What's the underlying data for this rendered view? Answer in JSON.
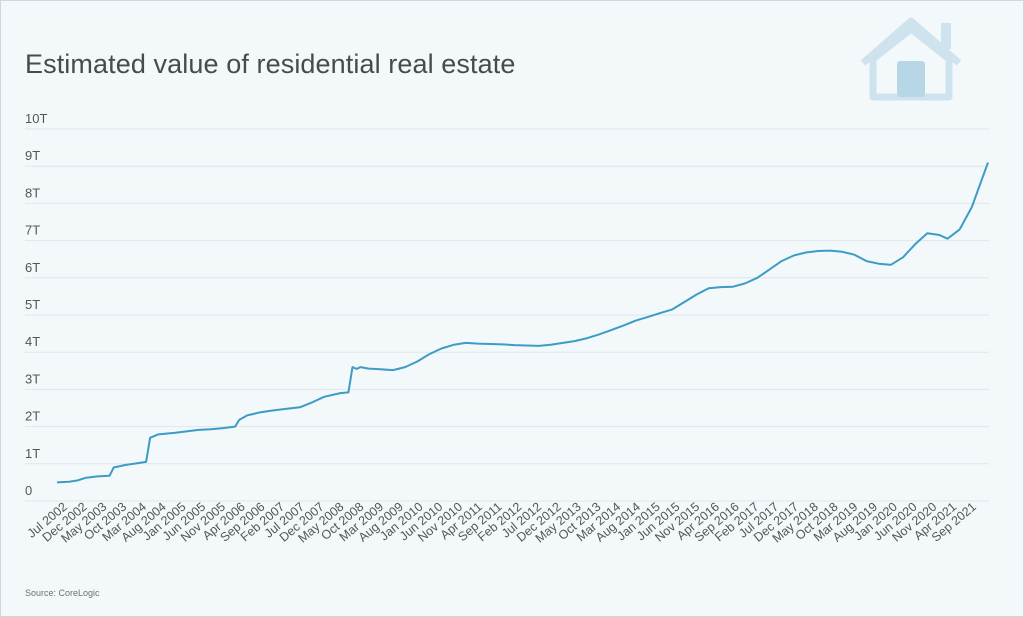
{
  "title": "Estimated value of residential real estate",
  "source": "Source: CoreLogic",
  "logo_icon": "house-icon",
  "colors": {
    "line": "#3d9cc4",
    "grid": "#dfe6ea",
    "logo": "#cfe3ee",
    "logo_window": "#b7d6e6"
  },
  "chart_data": {
    "type": "line",
    "title": "Estimated value of residential real estate",
    "xlabel": "",
    "ylabel": "",
    "ylim": [
      0,
      10
    ],
    "y_unit": "trillion",
    "yticks": [
      {
        "value": 0,
        "label": "0"
      },
      {
        "value": 1,
        "label": "1T"
      },
      {
        "value": 2,
        "label": "2T"
      },
      {
        "value": 3,
        "label": "3T"
      },
      {
        "value": 4,
        "label": "4T"
      },
      {
        "value": 5,
        "label": "5T"
      },
      {
        "value": 6,
        "label": "6T"
      },
      {
        "value": 7,
        "label": "7T"
      },
      {
        "value": 8,
        "label": "8T"
      },
      {
        "value": 9,
        "label": "9T"
      },
      {
        "value": 10,
        "label": "10T"
      }
    ],
    "x_start": "2002-07",
    "x_end": "2021-09",
    "xticks": [
      "Jul 2002",
      "Dec 2002",
      "May 2003",
      "Oct 2003",
      "Mar 2004",
      "Aug 2004",
      "Jan 2005",
      "Jun 2005",
      "Nov 2005",
      "Apr 2006",
      "Sep 2006",
      "Feb 2007",
      "Jul 2007",
      "Dec 2007",
      "May 2008",
      "Oct 2008",
      "Mar 2009",
      "Aug 2009",
      "Jan 2010",
      "Jun 2010",
      "Nov 2010",
      "Apr 2011",
      "Sep 2011",
      "Feb 2012",
      "Jul 2012",
      "Dec 2012",
      "May 2013",
      "Oct 2013",
      "Mar 2014",
      "Aug 2014",
      "Jan 2015",
      "Jun 2015",
      "Nov 2015",
      "Apr 2016",
      "Sep 2016",
      "Feb 2017",
      "Jul 2017",
      "Dec 2017",
      "May 2018",
      "Oct 2018",
      "Mar 2019",
      "Aug 2019",
      "Jan 2020",
      "Jun 2020",
      "Nov 2020",
      "Apr 2021",
      "Sep 2021"
    ],
    "series": [
      {
        "name": "Estimated value of residential real estate",
        "points": [
          [
            "2002-07",
            0.5
          ],
          [
            "2002-10",
            0.52
          ],
          [
            "2002-12",
            0.55
          ],
          [
            "2003-02",
            0.62
          ],
          [
            "2003-05",
            0.66
          ],
          [
            "2003-08",
            0.68
          ],
          [
            "2003-09",
            0.9
          ],
          [
            "2003-12",
            0.97
          ],
          [
            "2004-03",
            1.02
          ],
          [
            "2004-05",
            1.05
          ],
          [
            "2004-06",
            1.7
          ],
          [
            "2004-08",
            1.79
          ],
          [
            "2004-12",
            1.83
          ],
          [
            "2005-03",
            1.87
          ],
          [
            "2005-06",
            1.91
          ],
          [
            "2005-09",
            1.93
          ],
          [
            "2005-12",
            1.96
          ],
          [
            "2006-03",
            2.0
          ],
          [
            "2006-04",
            2.18
          ],
          [
            "2006-06",
            2.3
          ],
          [
            "2006-09",
            2.38
          ],
          [
            "2006-12",
            2.43
          ],
          [
            "2007-03",
            2.47
          ],
          [
            "2007-07",
            2.52
          ],
          [
            "2007-10",
            2.65
          ],
          [
            "2008-01",
            2.8
          ],
          [
            "2008-05",
            2.9
          ],
          [
            "2008-07",
            2.92
          ],
          [
            "2008-08",
            3.6
          ],
          [
            "2008-09",
            3.55
          ],
          [
            "2008-10",
            3.6
          ],
          [
            "2008-12",
            3.56
          ],
          [
            "2009-03",
            3.54
          ],
          [
            "2009-06",
            3.52
          ],
          [
            "2009-09",
            3.6
          ],
          [
            "2009-12",
            3.75
          ],
          [
            "2010-03",
            3.95
          ],
          [
            "2010-06",
            4.1
          ],
          [
            "2010-09",
            4.2
          ],
          [
            "2010-12",
            4.25
          ],
          [
            "2011-03",
            4.23
          ],
          [
            "2011-06",
            4.22
          ],
          [
            "2011-09",
            4.21
          ],
          [
            "2011-12",
            4.19
          ],
          [
            "2012-03",
            4.18
          ],
          [
            "2012-06",
            4.17
          ],
          [
            "2012-09",
            4.2
          ],
          [
            "2012-12",
            4.25
          ],
          [
            "2013-03",
            4.3
          ],
          [
            "2013-06",
            4.38
          ],
          [
            "2013-09",
            4.48
          ],
          [
            "2013-12",
            4.6
          ],
          [
            "2014-03",
            4.72
          ],
          [
            "2014-06",
            4.85
          ],
          [
            "2014-09",
            4.95
          ],
          [
            "2014-12",
            5.05
          ],
          [
            "2015-03",
            5.15
          ],
          [
            "2015-06",
            5.35
          ],
          [
            "2015-09",
            5.55
          ],
          [
            "2015-12",
            5.72
          ],
          [
            "2016-03",
            5.75
          ],
          [
            "2016-06",
            5.76
          ],
          [
            "2016-09",
            5.85
          ],
          [
            "2016-12",
            6.0
          ],
          [
            "2017-03",
            6.22
          ],
          [
            "2017-06",
            6.45
          ],
          [
            "2017-09",
            6.6
          ],
          [
            "2017-12",
            6.68
          ],
          [
            "2018-03",
            6.72
          ],
          [
            "2018-06",
            6.73
          ],
          [
            "2018-09",
            6.7
          ],
          [
            "2018-12",
            6.62
          ],
          [
            "2019-03",
            6.45
          ],
          [
            "2019-06",
            6.38
          ],
          [
            "2019-09",
            6.35
          ],
          [
            "2019-12",
            6.55
          ],
          [
            "2020-03",
            6.9
          ],
          [
            "2020-06",
            7.2
          ],
          [
            "2020-09",
            7.15
          ],
          [
            "2020-11",
            7.05
          ],
          [
            "2021-02",
            7.3
          ],
          [
            "2021-05",
            7.9
          ],
          [
            "2021-07",
            8.5
          ],
          [
            "2021-09",
            9.1
          ]
        ]
      }
    ]
  }
}
